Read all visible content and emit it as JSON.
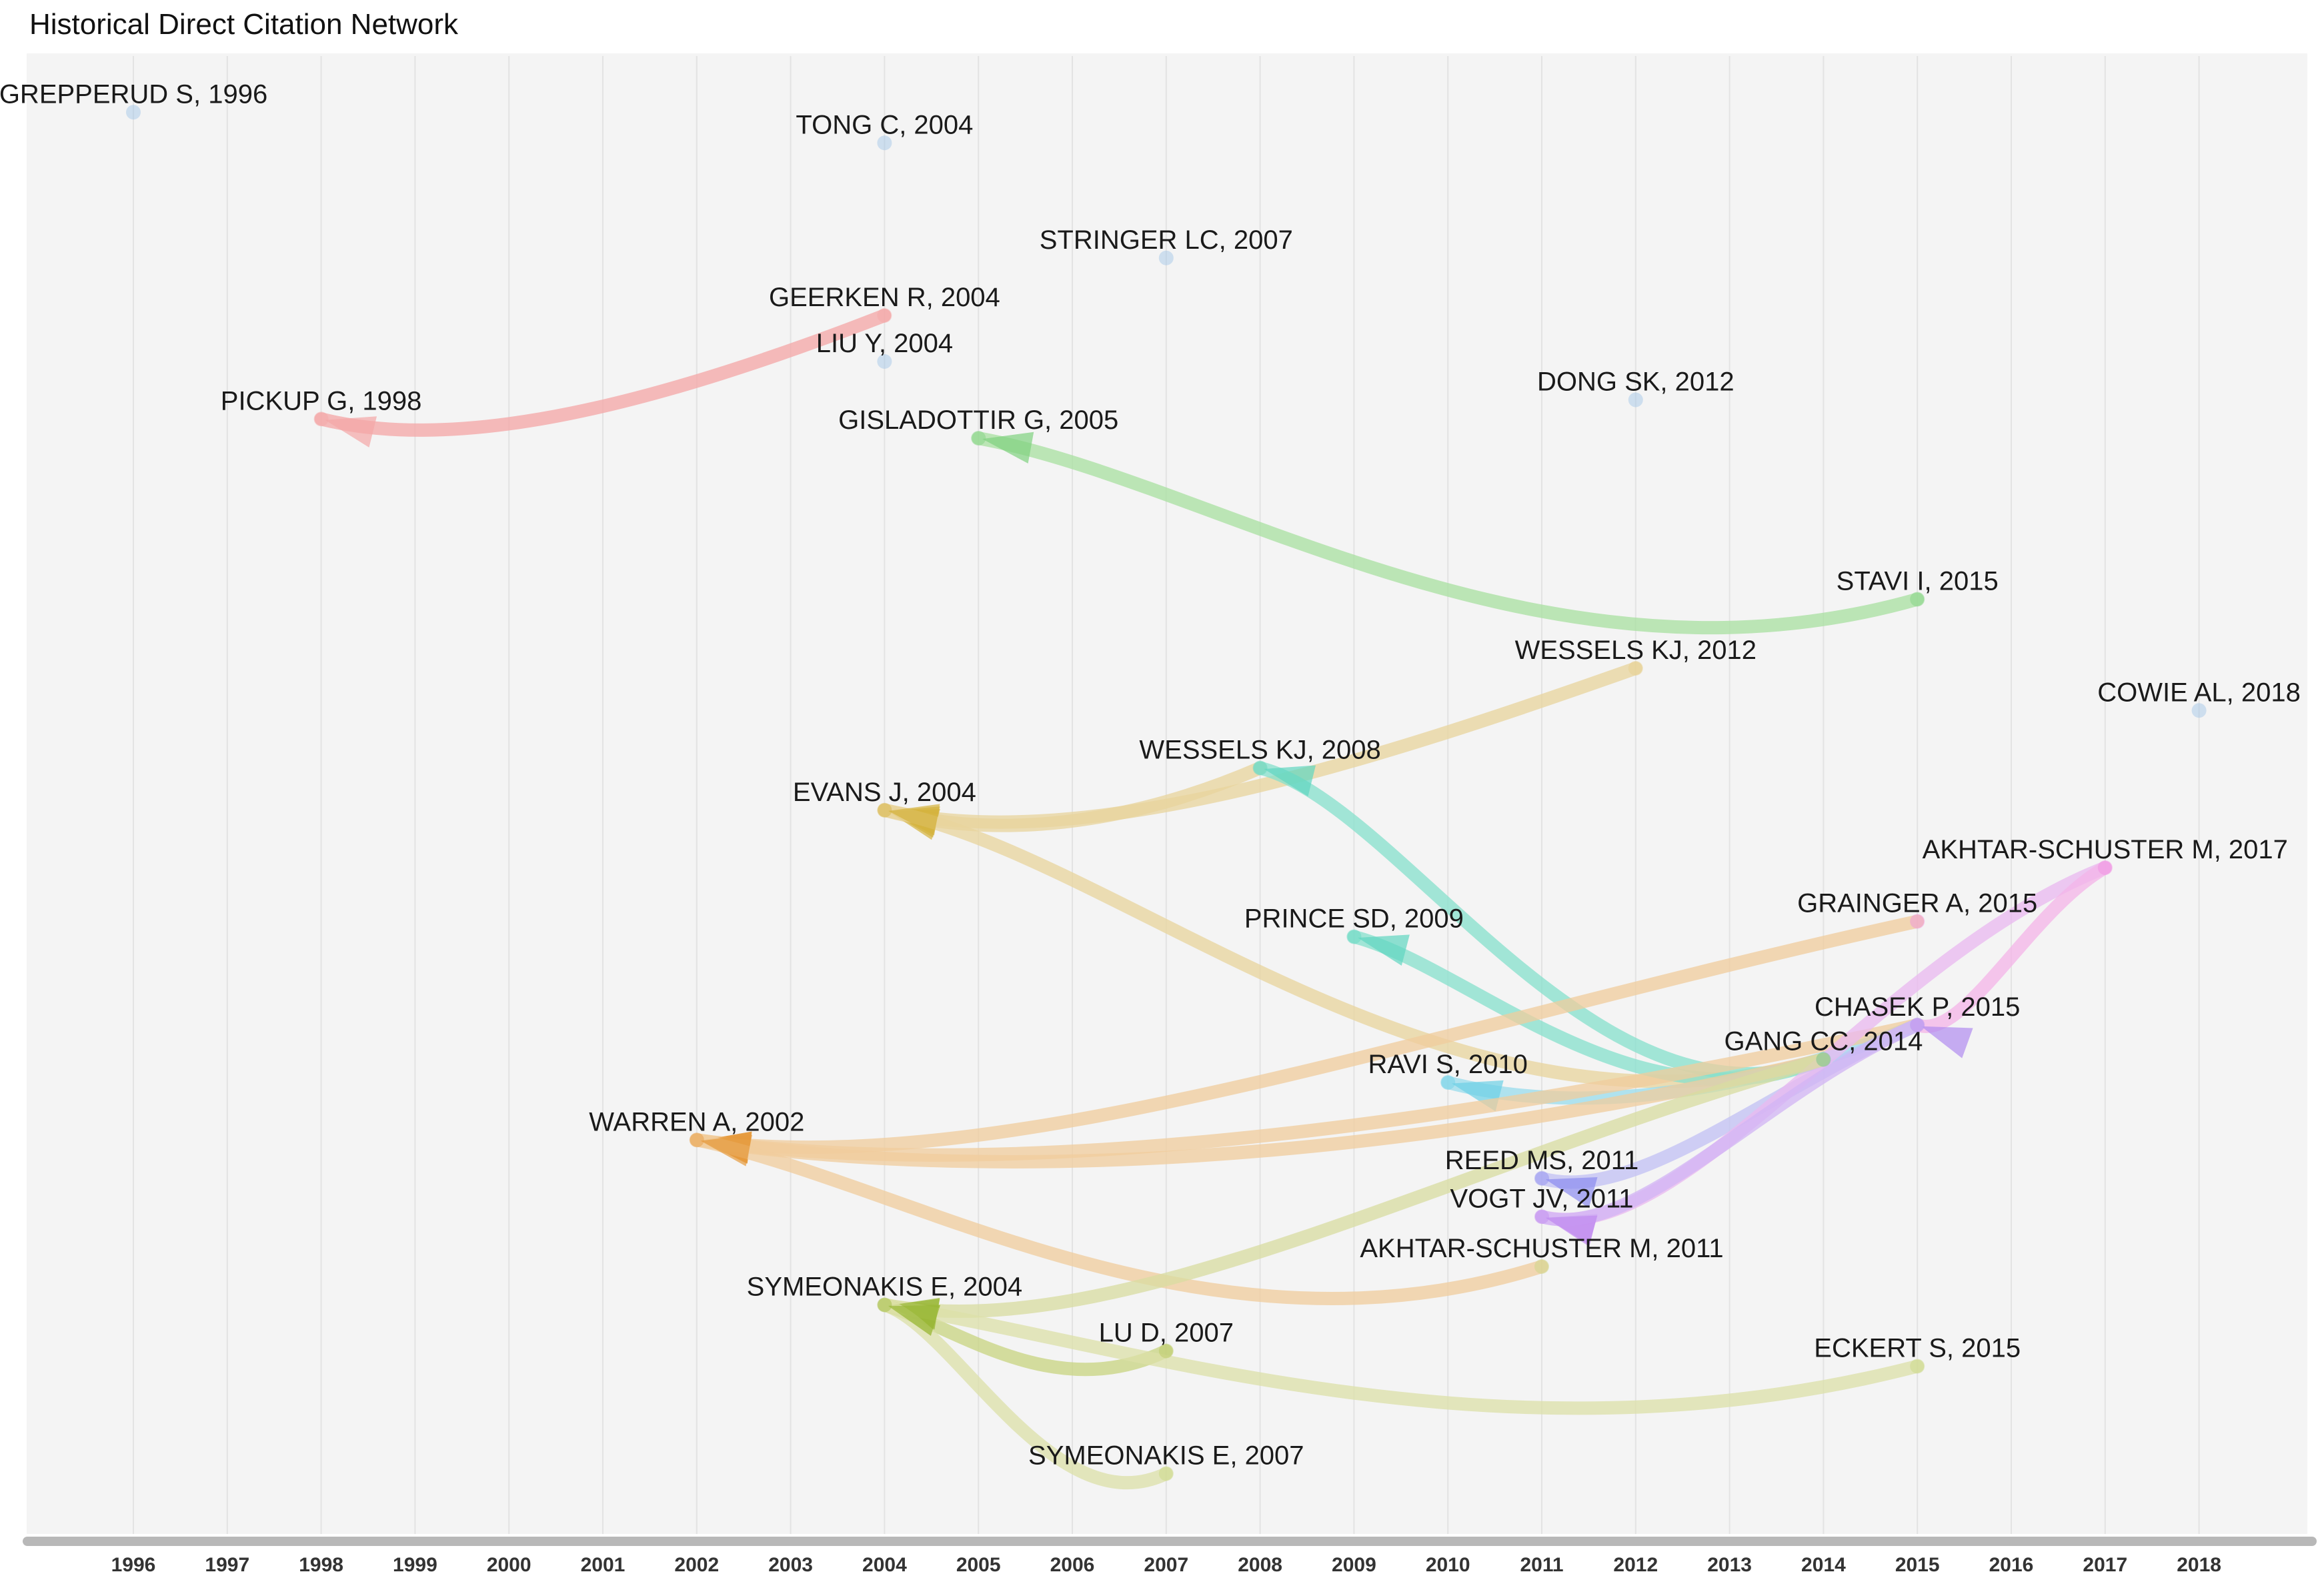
{
  "chart_data": {
    "type": "network",
    "title": "Historical Direct Citation Network",
    "x_axis": {
      "ticks": [
        "1996",
        "1997",
        "1998",
        "1999",
        "2000",
        "2001",
        "2002",
        "2003",
        "2004",
        "2005",
        "2006",
        "2007",
        "2008",
        "2009",
        "2010",
        "2011",
        "2012",
        "2013",
        "2014",
        "2015",
        "2016",
        "2017",
        "2018"
      ]
    },
    "nodes": [
      {
        "id": "grepperud1996",
        "label": "GREPPERUD S, 1996",
        "year": 1996,
        "row": 1.5,
        "color": "#9ec3e6"
      },
      {
        "id": "tong2004",
        "label": "TONG C, 2004",
        "year": 2004,
        "row": 2.3,
        "color": "#9ec3e6"
      },
      {
        "id": "stringer2007",
        "label": "STRINGER LC, 2007",
        "year": 2007,
        "row": 5.3,
        "color": "#9ec3e6"
      },
      {
        "id": "geerken2004",
        "label": "GEERKEN R, 2004",
        "year": 2004,
        "row": 6.8,
        "color": "#f4a6a6"
      },
      {
        "id": "liuy2004",
        "label": "LIU Y, 2004",
        "year": 2004,
        "row": 8.0,
        "color": "#9ec3e6"
      },
      {
        "id": "pickup1998",
        "label": "PICKUP G, 1998",
        "year": 1998,
        "row": 9.5,
        "color": "#f4a6a6"
      },
      {
        "id": "gisladottir2005",
        "label": "GISLADOTTIR G, 2005",
        "year": 2005,
        "row": 10.0,
        "color": "#7fd17f"
      },
      {
        "id": "dong2012",
        "label": "DONG SK, 2012",
        "year": 2012,
        "row": 9.0,
        "color": "#9ec3e6"
      },
      {
        "id": "stavi2015",
        "label": "STAVI I, 2015",
        "year": 2015,
        "row": 14.2,
        "color": "#7fd17f"
      },
      {
        "id": "wessels2012",
        "label": "WESSELS KJ, 2012",
        "year": 2012,
        "row": 16.0,
        "color": "#e6cf8c"
      },
      {
        "id": "cowie2018",
        "label": "COWIE AL, 2018",
        "year": 2018,
        "row": 17.1,
        "color": "#9ec3e6"
      },
      {
        "id": "wessels2008",
        "label": "WESSELS KJ, 2008",
        "year": 2008,
        "row": 18.6,
        "color": "#5fd6c0"
      },
      {
        "id": "evans2004",
        "label": "EVANS J, 2004",
        "year": 2004,
        "row": 19.7,
        "color": "#d4b23c"
      },
      {
        "id": "akhtar2017",
        "label": "AKHTAR-SCHUSTER M, 2017",
        "year": 2017,
        "row": 21.2,
        "color": "#f08ce0"
      },
      {
        "id": "grainger2015",
        "label": "GRAINGER A, 2015",
        "year": 2015,
        "row": 22.6,
        "color": "#f08ce0"
      },
      {
        "id": "prince2009",
        "label": "PRINCE SD, 2009",
        "year": 2009,
        "row": 23.0,
        "color": "#5fd6c0"
      },
      {
        "id": "chasek2015",
        "label": "CHASEK P, 2015",
        "year": 2015,
        "row": 25.3,
        "color": "#b08cf0"
      },
      {
        "id": "gang2014",
        "label": "GANG CC, 2014",
        "year": 2014,
        "row": 26.2,
        "color": "#5fc080"
      },
      {
        "id": "ravi2010",
        "label": "RAVI S, 2010",
        "year": 2010,
        "row": 26.8,
        "color": "#6cd0e6"
      },
      {
        "id": "warren2002",
        "label": "WARREN A, 2002",
        "year": 2002,
        "row": 28.3,
        "color": "#e69a3c"
      },
      {
        "id": "reed2011",
        "label": "REED MS, 2011",
        "year": 2011,
        "row": 29.3,
        "color": "#8c8cf0"
      },
      {
        "id": "vogt2011",
        "label": "VOGT JV, 2011",
        "year": 2011,
        "row": 30.3,
        "color": "#c28cf0"
      },
      {
        "id": "akhtar2011",
        "label": "AKHTAR-SCHUSTER M, 2011",
        "year": 2011,
        "row": 31.6,
        "color": "#c8d880"
      },
      {
        "id": "symeonakis2004",
        "label": "SYMEONAKIS E, 2004",
        "year": 2004,
        "row": 32.6,
        "color": "#9ab838"
      },
      {
        "id": "lud2007",
        "label": "LU D, 2007",
        "year": 2007,
        "row": 33.8,
        "color": "#b8c860"
      },
      {
        "id": "eckert2015",
        "label": "ECKERT S, 2015",
        "year": 2015,
        "row": 34.2,
        "color": "#c8d880"
      },
      {
        "id": "symeonakis2007",
        "label": "SYMEONAKIS E, 2007",
        "year": 2007,
        "row": 37.0,
        "color": "#c8d880"
      }
    ],
    "edges": [
      {
        "from": "geerken2004",
        "to": "pickup1998",
        "color": "#f4a6a6"
      },
      {
        "from": "stavi2015",
        "to": "gisladottir2005",
        "color": "#a8e0a0"
      },
      {
        "from": "wessels2012",
        "to": "evans2004",
        "color": "#e8d49c"
      },
      {
        "from": "wessels2008",
        "to": "evans2004",
        "color": "#e8d49c"
      },
      {
        "from": "gang2014",
        "to": "evans2004",
        "color": "#e8d49c"
      },
      {
        "from": "gang2014",
        "to": "wessels2008",
        "color": "#86e0cc"
      },
      {
        "from": "gang2014",
        "to": "prince2009",
        "color": "#86e0cc"
      },
      {
        "from": "chasek2015",
        "to": "ravi2010",
        "color": "#98dcec"
      },
      {
        "from": "grainger2015",
        "to": "warren2002",
        "color": "#f0cc9c"
      },
      {
        "from": "chasek2015",
        "to": "warren2002",
        "color": "#f0cc9c"
      },
      {
        "from": "gang2014",
        "to": "warren2002",
        "color": "#f0cc9c"
      },
      {
        "from": "akhtar2011",
        "to": "warren2002",
        "color": "#f0cc9c"
      },
      {
        "from": "chasek2015",
        "to": "reed2011",
        "color": "#c2c0f4"
      },
      {
        "from": "akhtar2017",
        "to": "vogt2011",
        "color": "#eab8f0"
      },
      {
        "from": "akhtar2017",
        "to": "chasek2015",
        "color": "#f4b4e8"
      },
      {
        "from": "chasek2015",
        "to": "vogt2011",
        "color": "#d2b4f4"
      },
      {
        "from": "gang2014",
        "to": "symeonakis2004",
        "color": "#d8dca0"
      },
      {
        "from": "lud2007",
        "to": "symeonakis2004",
        "color": "#c8d480"
      },
      {
        "from": "eckert2015",
        "to": "symeonakis2004",
        "color": "#dce0a8"
      },
      {
        "from": "symeonakis2007",
        "to": "symeonakis2004",
        "color": "#dce0a8"
      }
    ]
  }
}
